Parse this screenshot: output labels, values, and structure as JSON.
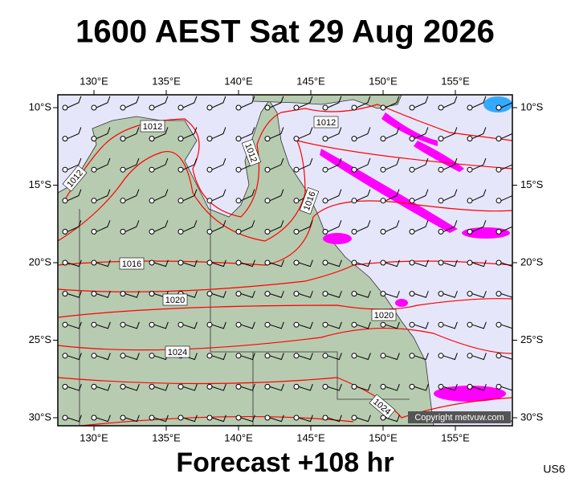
{
  "title": "1600 AEST Sat 29 Aug 2026",
  "longitude_labels": [
    "130°E",
    "135°E",
    "140°E",
    "145°E",
    "150°E",
    "155°E"
  ],
  "latitude_labels": [
    "10°S",
    "15°S",
    "20°S",
    "25°S",
    "30°S"
  ],
  "isobar_labels": [
    "1012",
    "1012",
    "1012",
    "1012",
    "1016",
    "1016",
    "1020",
    "1020",
    "1024",
    "1024"
  ],
  "copyright": "Copyright metvuw.com",
  "footer": "Forecast +108 hr",
  "code": "US6"
}
